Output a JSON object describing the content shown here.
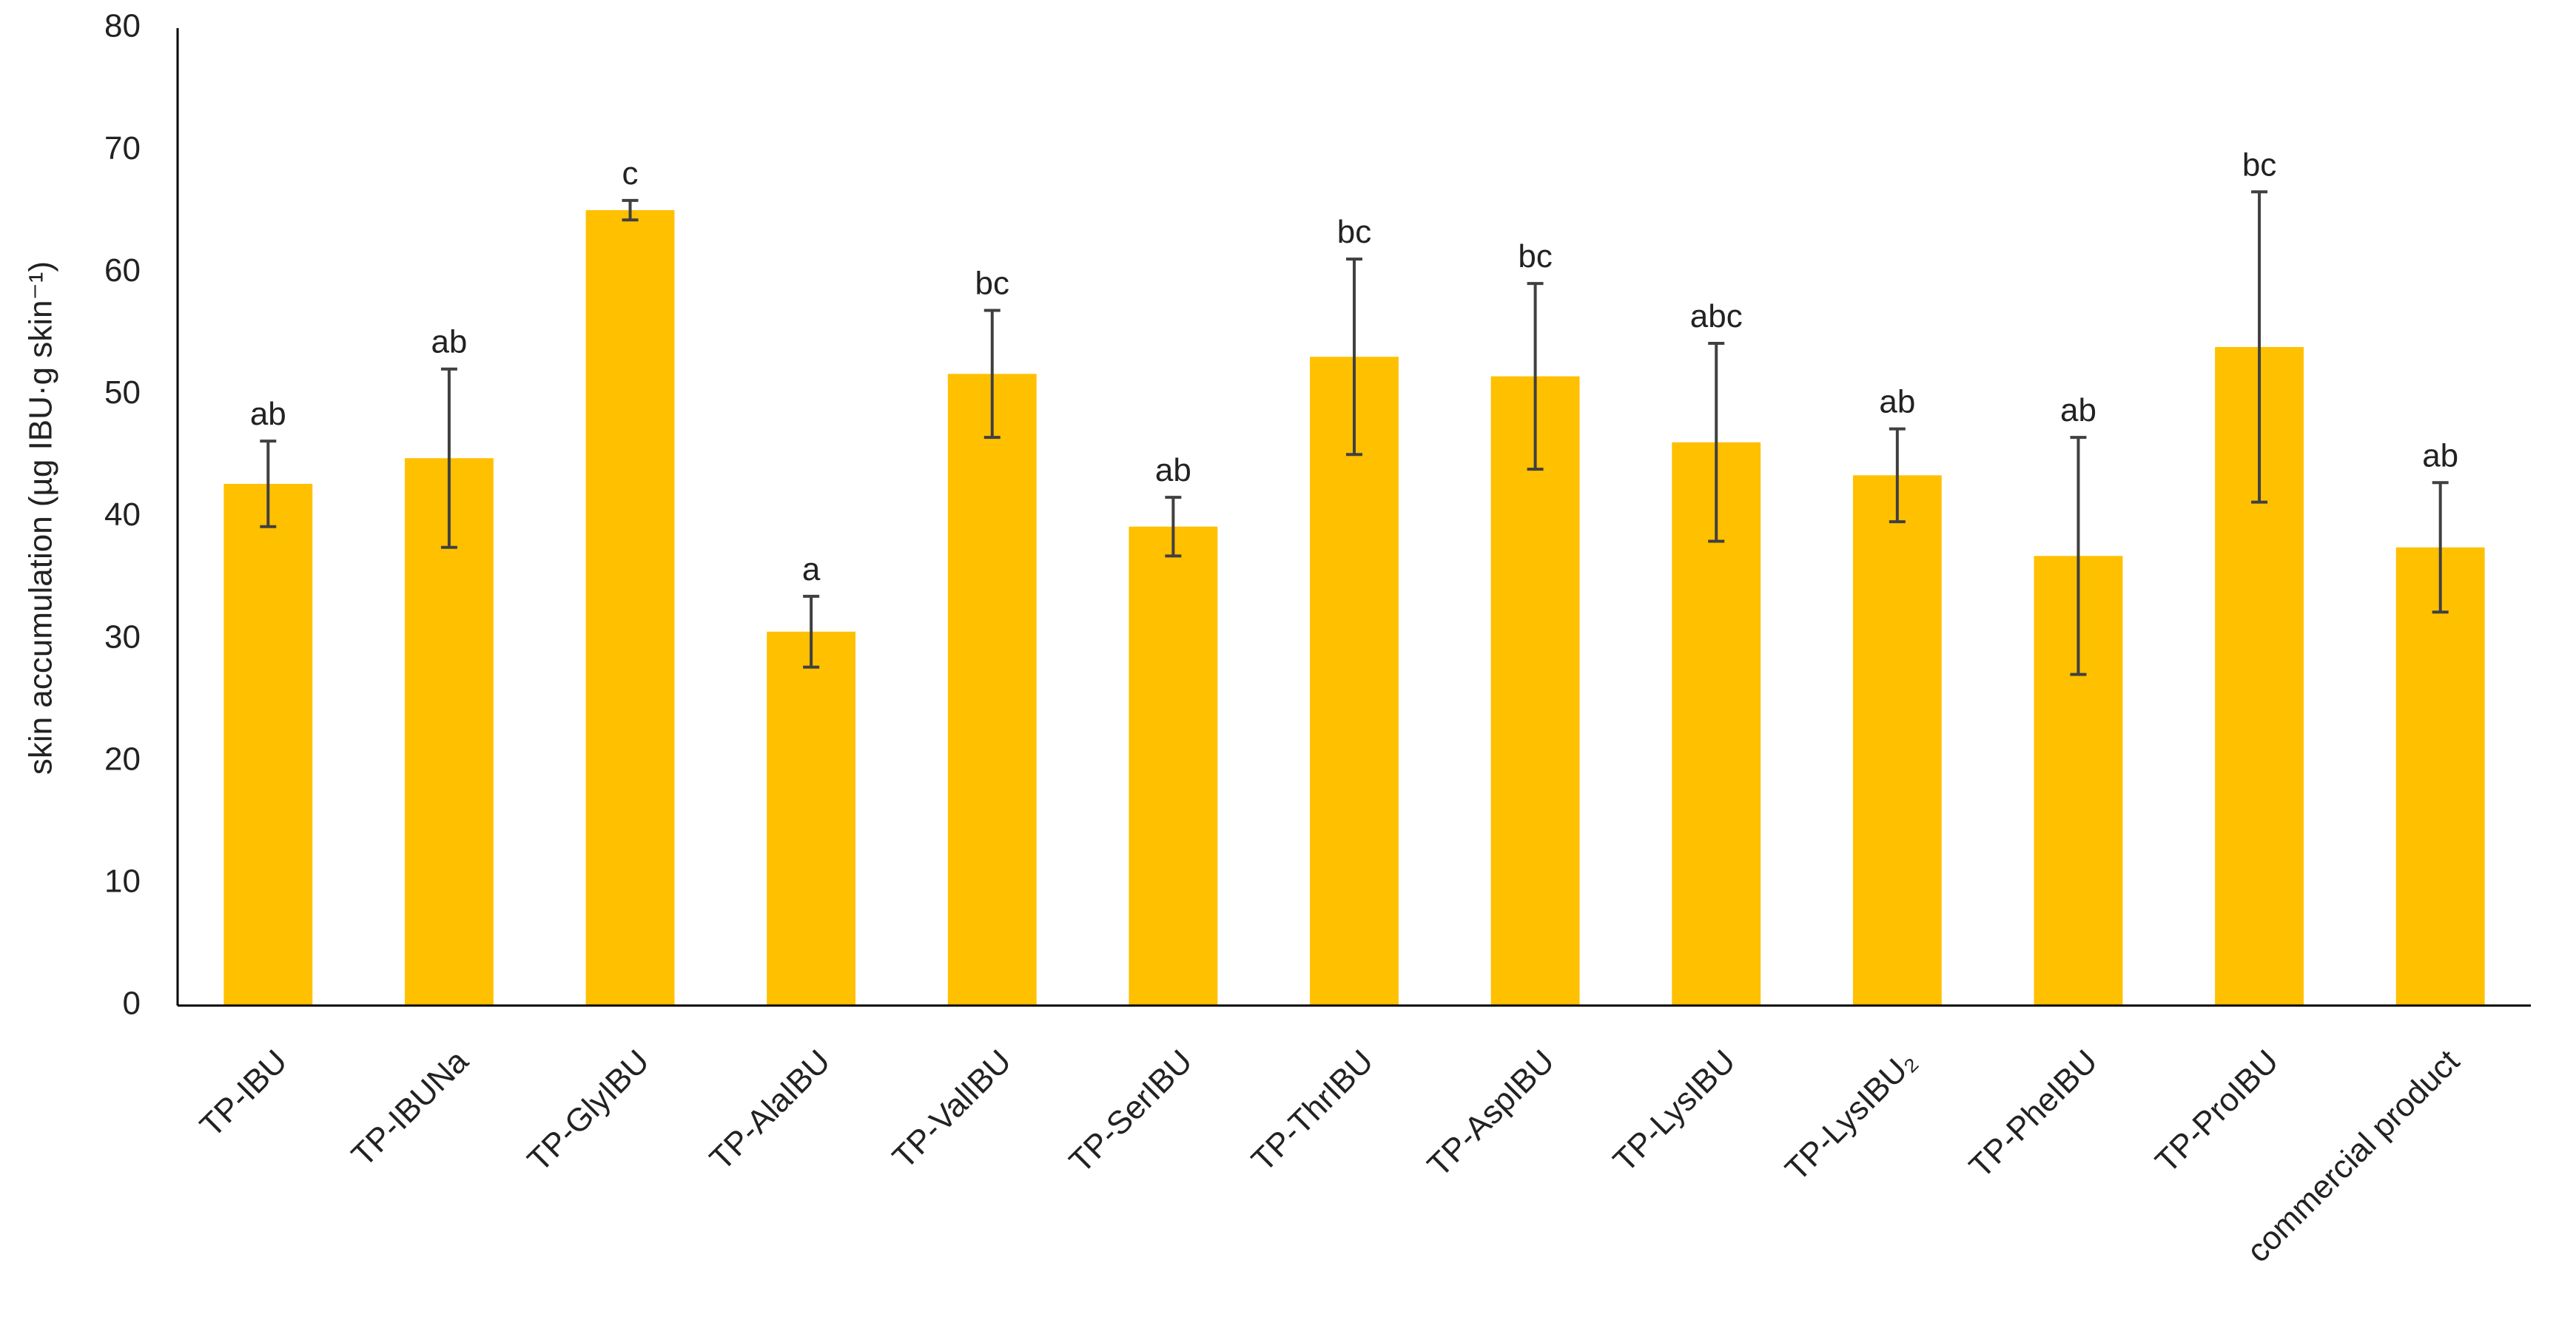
{
  "chart_data": {
    "type": "bar",
    "y_label": "skin accumulation (µg IBU·g skin⁻¹)",
    "categories": [
      "TP-IBU",
      "TP-IBUNa",
      "TP-GlyIBU",
      "TP-AlaIBU",
      "TP-ValIBU",
      "TP-SerIBU",
      "TP-ThrIBU",
      "TP-AspIBU",
      "TP-LysIBU",
      "TP-LysIBU₂",
      "TP-PheIBU",
      "TP-ProIBU",
      "commercial product"
    ],
    "values": [
      42.7,
      44.8,
      65.1,
      30.6,
      51.7,
      39.2,
      53.1,
      51.5,
      46.1,
      43.4,
      36.8,
      53.9,
      37.5
    ],
    "errors": [
      3.5,
      7.3,
      0.8,
      2.9,
      5.2,
      2.4,
      8.0,
      7.6,
      8.1,
      3.8,
      9.7,
      12.7,
      5.3
    ],
    "annotations": [
      "ab",
      "ab",
      "c",
      "a",
      "bc",
      "ab",
      "bc",
      "bc",
      "abc",
      "ab",
      "ab",
      "bc",
      "ab"
    ],
    "color": "#ffc000",
    "error_color": "#404040",
    "ylim": [
      0,
      80
    ],
    "yticks": [
      0,
      10,
      20,
      30,
      40,
      50,
      60,
      70,
      80
    ],
    "grid": false
  }
}
